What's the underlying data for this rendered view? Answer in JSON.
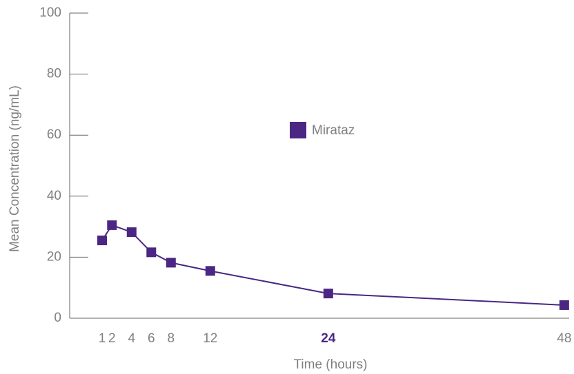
{
  "chart_data": {
    "type": "line",
    "x_label": "Time (hours)",
    "y_label": "Mean Concentration (ng/mL)",
    "x": [
      1,
      2,
      4,
      6,
      8,
      12,
      24,
      48
    ],
    "series": [
      {
        "name": "Mirataz",
        "color": "#4b2683",
        "values": [
          25.5,
          30.5,
          28.2,
          21.6,
          18.2,
          15.5,
          8.1,
          4.3
        ]
      }
    ],
    "xlim": [
      -2.3,
      48.5
    ],
    "xticks": [
      1,
      2,
      4,
      6,
      8,
      12,
      24,
      48
    ],
    "xtick_highlight": 24,
    "ylim": [
      0,
      100
    ],
    "yticks": [
      0,
      20,
      40,
      60,
      80,
      100
    ],
    "grid": false,
    "legend": "center"
  }
}
